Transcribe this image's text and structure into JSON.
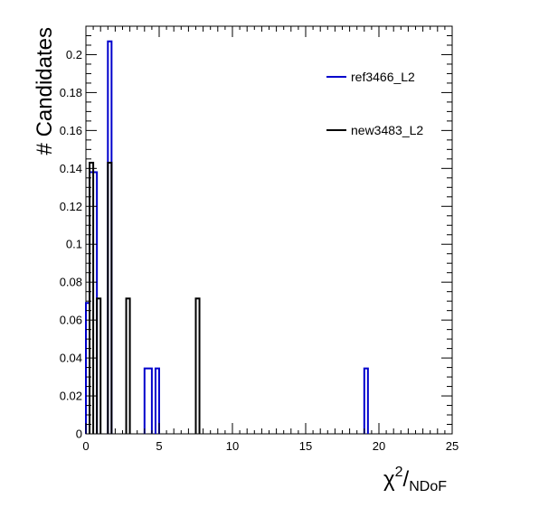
{
  "chart_data": {
    "type": "histogram",
    "ylabel": "# Candidates",
    "xlabel_main": "χ",
    "xlabel_sup": "2",
    "xlabel_slash": "/",
    "xlabel_sub": "NDoF",
    "xlim": [
      0,
      25
    ],
    "ylim": [
      0,
      0.215
    ],
    "xticks": [
      "0",
      "5",
      "10",
      "15",
      "20",
      "25"
    ],
    "yticks": [
      "0",
      "0.02",
      "0.04",
      "0.06",
      "0.08",
      "0.1",
      "0.12",
      "0.14",
      "0.16",
      "0.18",
      "0.2"
    ],
    "grid": false,
    "legend_position": "top-right",
    "bin_width": 0.25,
    "series": [
      {
        "name": "ref3466_L2",
        "color": "#0000cc",
        "bins": [
          {
            "x": 0.0,
            "y": 0.069
          },
          {
            "x": 0.25,
            "y": 0.138
          },
          {
            "x": 0.5,
            "y": 0.138
          },
          {
            "x": 1.5,
            "y": 0.207
          },
          {
            "x": 4.0,
            "y": 0.0345
          },
          {
            "x": 4.25,
            "y": 0.0345
          },
          {
            "x": 4.75,
            "y": 0.0345
          },
          {
            "x": 19.0,
            "y": 0.0345
          }
        ]
      },
      {
        "name": "new3483_L2",
        "color": "#000000",
        "bins": [
          {
            "x": 0.25,
            "y": 0.143
          },
          {
            "x": 0.75,
            "y": 0.0714
          },
          {
            "x": 1.5,
            "y": 0.143
          },
          {
            "x": 2.75,
            "y": 0.0714
          },
          {
            "x": 7.5,
            "y": 0.0714
          }
        ]
      }
    ]
  }
}
